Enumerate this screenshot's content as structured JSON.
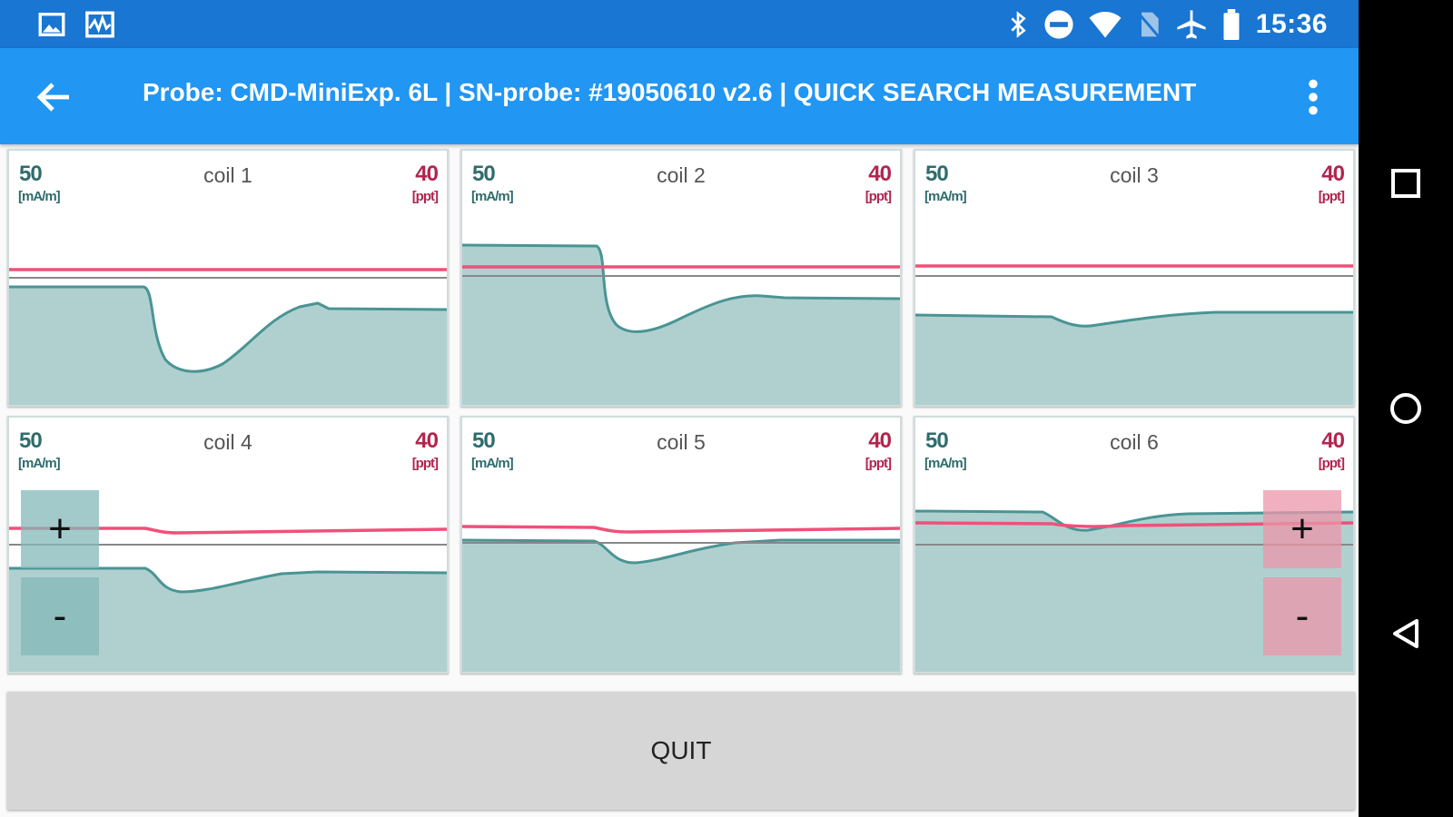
{
  "status_bar": {
    "time": "15:36",
    "left_icons": [
      "image-icon",
      "activity-icon"
    ],
    "right_icons": [
      "bluetooth-icon",
      "do-not-disturb-icon",
      "wifi-icon",
      "no-sim-icon",
      "airplane-icon",
      "battery-icon"
    ]
  },
  "app_bar": {
    "title": "Probe: CMD-MiniExp. 6L | SN-probe: #19050610 v2.6 | QUICK SEARCH MEASUREMENT"
  },
  "colors": {
    "status_bar": "#1976d2",
    "app_bar": "#2196f3",
    "teal_trace": "#4a9494",
    "teal_fill": "#b0d0d0",
    "pink_trace": "#f0507a"
  },
  "coils": [
    {
      "title": "coil 1",
      "left_value": "50",
      "left_unit": "[mA/m]",
      "right_value": "40",
      "right_unit": "[ppt]"
    },
    {
      "title": "coil 2",
      "left_value": "50",
      "left_unit": "[mA/m]",
      "right_value": "40",
      "right_unit": "[ppt]"
    },
    {
      "title": "coil 3",
      "left_value": "50",
      "left_unit": "[mA/m]",
      "right_value": "40",
      "right_unit": "[ppt]"
    },
    {
      "title": "coil 4",
      "left_value": "50",
      "left_unit": "[mA/m]",
      "right_value": "40",
      "right_unit": "[ppt]"
    },
    {
      "title": "coil 5",
      "left_value": "50",
      "left_unit": "[mA/m]",
      "right_value": "40",
      "right_unit": "[ppt]"
    },
    {
      "title": "coil 6",
      "left_value": "50",
      "left_unit": "[mA/m]",
      "right_value": "40",
      "right_unit": "[ppt]"
    }
  ],
  "zoom_left": {
    "plus": "+",
    "minus": "-"
  },
  "zoom_right": {
    "plus": "+",
    "minus": "-"
  },
  "quit_label": "QUIT",
  "nav_icons": [
    "recent-apps-icon",
    "home-icon",
    "back-icon"
  ]
}
